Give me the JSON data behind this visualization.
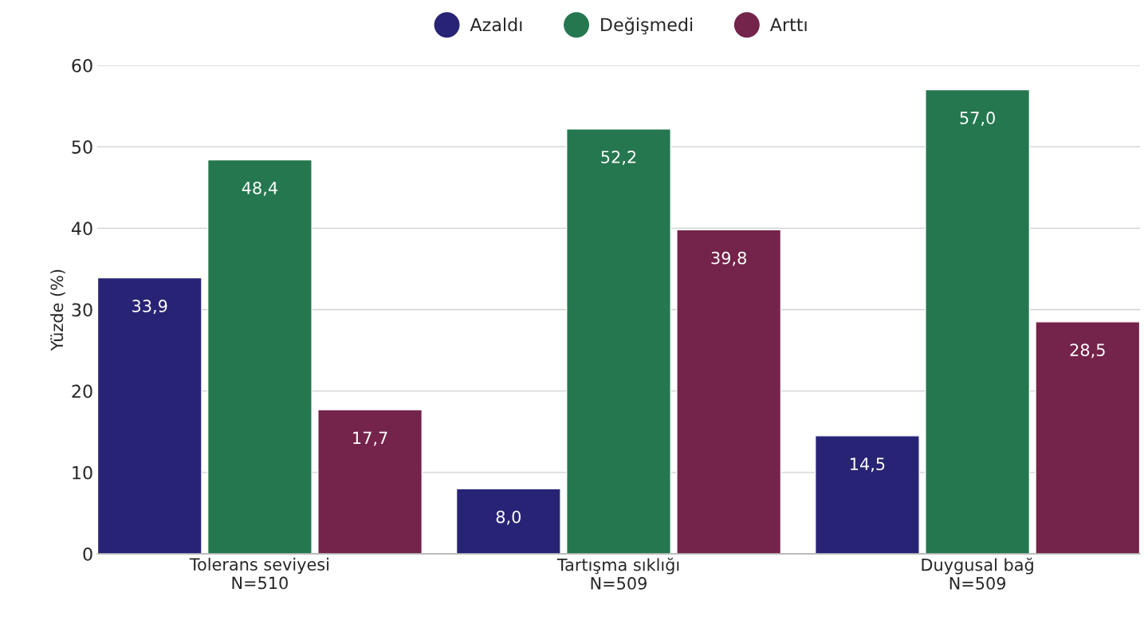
{
  "chart_data": {
    "type": "bar",
    "ylabel": "Yüzde (%)",
    "categories": [
      "Tolerans seviyesi\nN=510",
      "Tartışma sıklığı\nN=509",
      "Duygusal bağ\nN=509"
    ],
    "series": [
      {
        "name": "Azaldı",
        "color": "#282475",
        "values": [
          33.9,
          8.0,
          14.5
        ],
        "value_labels": [
          "33,9",
          "8,0",
          "14,5"
        ]
      },
      {
        "name": "Değişmedi",
        "color": "#25774f",
        "values": [
          48.4,
          52.2,
          57.0
        ],
        "value_labels": [
          "48,4",
          "52,2",
          "57,0"
        ]
      },
      {
        "name": "Arttı",
        "color": "#74234a",
        "values": [
          17.7,
          39.8,
          28.5
        ],
        "value_labels": [
          "17,7",
          "39,8",
          "28,5"
        ]
      }
    ],
    "ylim": [
      0,
      60
    ],
    "yticks": [
      0,
      10,
      20,
      30,
      40,
      50,
      60
    ],
    "grid": "y",
    "legend": "top"
  }
}
